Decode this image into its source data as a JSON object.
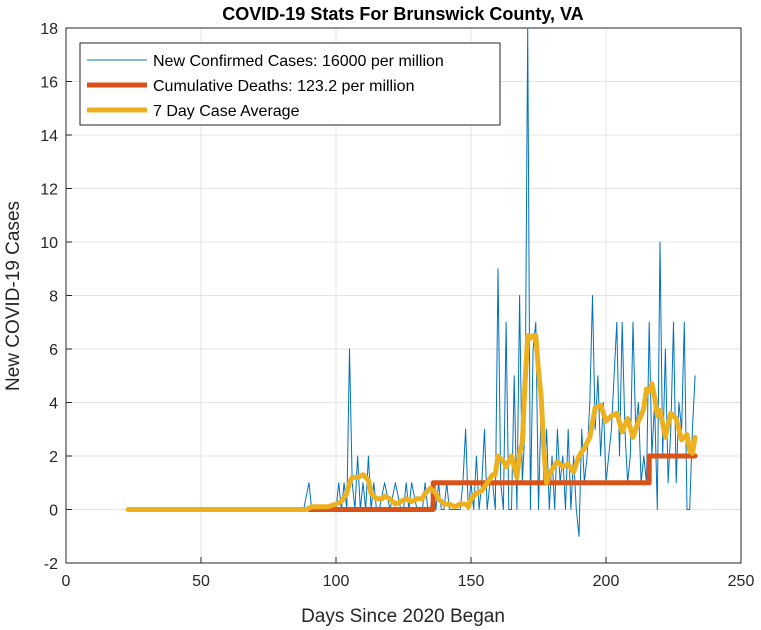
{
  "chart_data": {
    "type": "line",
    "title": "COVID-19 Stats For Brunswick County, VA",
    "xlabel": "Days Since 2020 Began",
    "ylabel": "New COVID-19 Cases",
    "xlim": [
      0,
      250
    ],
    "ylim": [
      -2,
      18
    ],
    "xticks": [
      0,
      50,
      100,
      150,
      200,
      250
    ],
    "yticks": [
      -2,
      0,
      2,
      4,
      6,
      8,
      10,
      12,
      14,
      16,
      18
    ],
    "grid": true,
    "legend_position": "top-left",
    "series": [
      {
        "name": "New Confirmed Cases: 16000 per million",
        "color": "#0072BD",
        "style": "thin",
        "x": [
          23,
          30,
          40,
          50,
          60,
          70,
          80,
          88,
          90,
          91,
          92,
          95,
          98,
          100,
          101,
          102,
          103,
          104,
          105,
          106,
          107,
          108,
          109,
          110,
          111,
          112,
          113,
          114,
          115,
          116,
          118,
          120,
          122,
          124,
          125,
          126,
          127,
          128,
          130,
          132,
          133,
          134,
          135,
          136,
          137,
          138,
          139,
          140,
          141,
          142,
          143,
          144,
          145,
          146,
          147,
          148,
          149,
          150,
          151,
          152,
          153,
          154,
          155,
          156,
          157,
          158,
          159,
          160,
          161,
          162,
          163,
          164,
          165,
          166,
          167,
          168,
          169,
          170,
          171,
          172,
          173,
          174,
          175,
          176,
          177,
          178,
          179,
          180,
          181,
          182,
          183,
          184,
          185,
          186,
          187,
          188,
          189,
          190,
          191,
          192,
          193,
          194,
          195,
          196,
          197,
          198,
          199,
          200,
          201,
          202,
          203,
          204,
          205,
          206,
          207,
          208,
          209,
          210,
          211,
          212,
          213,
          214,
          215,
          216,
          217,
          218,
          219,
          220,
          221,
          222,
          223,
          224,
          225,
          226,
          227,
          228,
          229,
          230,
          231,
          232,
          233
        ],
        "y": [
          0,
          0,
          0,
          0,
          0,
          0,
          0,
          0,
          1,
          0,
          0,
          0,
          0,
          0,
          1,
          0,
          1,
          0,
          6,
          1,
          0,
          2,
          0,
          1,
          0,
          2,
          0,
          1,
          0,
          0,
          1,
          0,
          1,
          0,
          0,
          1,
          0,
          1,
          0,
          0,
          1,
          0,
          0,
          1,
          0,
          1,
          0,
          0,
          1,
          0,
          0,
          0,
          0,
          0,
          1,
          3,
          0,
          1,
          0,
          2,
          0,
          1,
          3,
          0,
          1,
          1,
          0,
          9,
          1,
          0,
          7,
          0,
          0,
          5,
          0,
          8,
          1,
          3,
          18,
          0,
          6,
          7,
          0,
          4,
          1,
          3,
          0,
          2,
          0,
          3,
          1,
          2,
          0,
          3,
          0,
          2,
          0,
          -1,
          3,
          1,
          2,
          4,
          8,
          3,
          5,
          2,
          4,
          1,
          2,
          3,
          5,
          7,
          2,
          7,
          3,
          1,
          2,
          7,
          3,
          4,
          1,
          2,
          1,
          7,
          2,
          4,
          0,
          10,
          2,
          6,
          1,
          3,
          7,
          1,
          4,
          3,
          7,
          0,
          0,
          3,
          5
        ]
      },
      {
        "name": "Cumulative Deaths: 123.2 per million",
        "color": "#D95319",
        "style": "thick",
        "x": [
          90,
          100,
          110,
          120,
          130,
          136,
          136,
          150,
          170,
          190,
          210,
          216,
          216,
          225,
          233
        ],
        "y": [
          0,
          0,
          0,
          0,
          0,
          0,
          1,
          1,
          1,
          1,
          1,
          1,
          2,
          2,
          2
        ]
      },
      {
        "name": "7 Day Case Average",
        "color": "#EDB120",
        "style": "thick",
        "x": [
          23,
          30,
          40,
          50,
          60,
          70,
          80,
          89,
          91,
          94,
          97,
          100,
          102,
          104,
          105,
          106,
          108,
          110,
          112,
          113,
          115,
          117,
          118,
          120,
          122,
          124,
          126,
          128,
          130,
          132,
          133,
          135,
          137,
          138,
          140,
          142,
          144,
          146,
          148,
          149,
          150,
          152,
          154,
          156,
          158,
          159,
          160,
          162,
          163,
          165,
          166,
          167,
          168,
          169,
          170,
          171,
          172,
          173,
          174,
          175,
          176,
          177,
          178,
          179,
          180,
          182,
          184,
          186,
          188,
          190,
          192,
          194,
          196,
          198,
          200,
          202,
          204,
          206,
          208,
          210,
          212,
          213,
          214,
          215,
          216,
          217,
          218,
          219,
          220,
          222,
          224,
          226,
          228,
          230,
          231,
          232,
          233
        ],
        "y": [
          0,
          0,
          0,
          0,
          0,
          0,
          0,
          0,
          0.1,
          0.1,
          0.1,
          0.2,
          0.3,
          0.6,
          1.0,
          1.2,
          1.2,
          1.3,
          1.1,
          0.6,
          0.4,
          0.4,
          0.5,
          0.4,
          0.2,
          0.3,
          0.4,
          0.3,
          0.4,
          0.4,
          0.6,
          0.8,
          0.6,
          0.4,
          0.2,
          0.2,
          0.1,
          0.2,
          0.2,
          0.1,
          0.4,
          0.6,
          0.7,
          1.0,
          1.3,
          1.3,
          2.0,
          1.8,
          1.6,
          2.0,
          1.6,
          1.2,
          2.1,
          2.5,
          4.7,
          6.5,
          6.4,
          6.5,
          6.5,
          5.2,
          4.2,
          2.2,
          1.0,
          1.3,
          1.5,
          1.8,
          1.6,
          1.7,
          1.4,
          2.0,
          2.3,
          2.7,
          3.8,
          3.9,
          3.3,
          3.5,
          3.6,
          2.9,
          3.4,
          2.7,
          3.3,
          3.5,
          3.8,
          4.5,
          4.4,
          4.7,
          4.2,
          3.5,
          3.7,
          2.7,
          3.6,
          3.4,
          2.6,
          2.8,
          2.2,
          2.1,
          2.7
        ]
      }
    ]
  }
}
